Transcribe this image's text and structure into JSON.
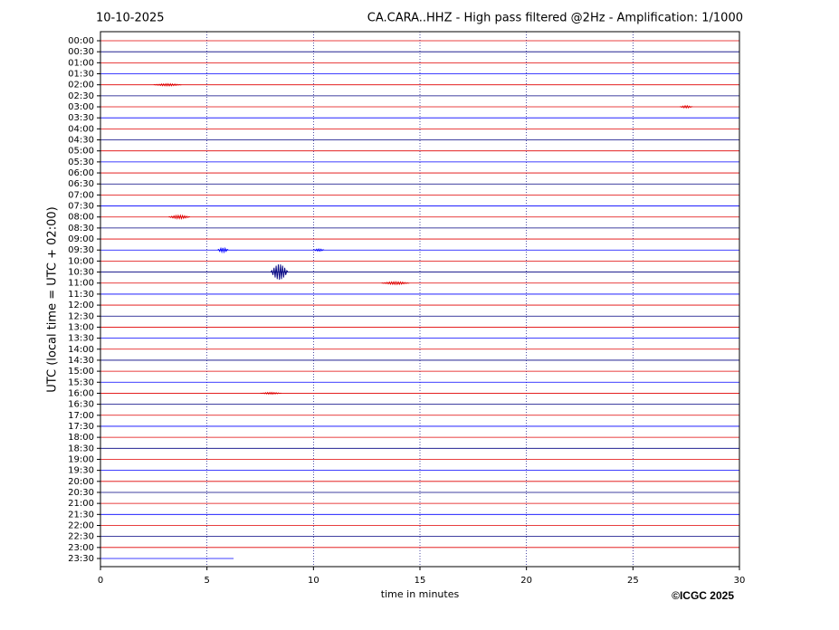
{
  "chart_data": {
    "type": "helicorder",
    "title": "CA.CARA..HHZ - High pass filtered @2Hz - Amplification: 1/1000",
    "date": "10-10-2025",
    "xlabel": "time in minutes",
    "ylabel": "UTC (local time = UTC + 02:00)",
    "credit": "©ICGC 2025",
    "categories": [
      "00:00",
      "00:30",
      "01:00",
      "01:30",
      "02:00",
      "02:30",
      "03:00",
      "03:30",
      "04:00",
      "04:30",
      "05:00",
      "05:30",
      "06:00",
      "06:30",
      "07:00",
      "07:30",
      "08:00",
      "08:30",
      "09:00",
      "09:30",
      "10:00",
      "10:30",
      "11:00",
      "11:30",
      "12:00",
      "12:30",
      "13:00",
      "13:30",
      "14:00",
      "14:30",
      "15:00",
      "15:30",
      "16:00",
      "16:30",
      "17:00",
      "17:30",
      "18:00",
      "18:30",
      "19:00",
      "19:30",
      "20:00",
      "20:30",
      "21:00",
      "21:30",
      "22:00",
      "22:30",
      "23:00",
      "23:30"
    ],
    "trace_end": [
      30,
      30,
      30,
      30,
      30,
      30,
      30,
      30,
      30,
      30,
      30,
      30,
      30,
      30,
      30,
      30,
      30,
      30,
      30,
      30,
      30,
      30,
      30,
      30,
      30,
      30,
      30,
      30,
      30,
      30,
      30,
      30,
      30,
      30,
      30,
      30,
      30,
      30,
      30,
      30,
      30,
      30,
      30,
      30,
      30,
      30,
      30,
      6.25
    ],
    "colors": [
      "#e00000",
      "#000080",
      "#e00000",
      "#0000ff"
    ],
    "events": [
      {
        "row": 4,
        "start": 2.5,
        "end": 3.8,
        "amplitude": 0.1
      },
      {
        "row": 6,
        "start": 27.2,
        "end": 27.8,
        "amplitude": 0.1
      },
      {
        "row": 16,
        "start": 3.2,
        "end": 4.2,
        "amplitude": 0.15
      },
      {
        "row": 19,
        "start": 5.5,
        "end": 6.0,
        "amplitude": 0.2
      },
      {
        "row": 19,
        "start": 10.0,
        "end": 10.5,
        "amplitude": 0.1
      },
      {
        "row": 21,
        "start": 8.0,
        "end": 8.8,
        "amplitude": 0.7
      },
      {
        "row": 22,
        "start": 13.2,
        "end": 14.5,
        "amplitude": 0.12
      },
      {
        "row": 32,
        "start": 7.5,
        "end": 8.5,
        "amplitude": 0.08
      }
    ],
    "xlim": [
      0,
      30
    ],
    "xticks": [
      0,
      5,
      10,
      15,
      20,
      25,
      30
    ],
    "grid": true
  }
}
